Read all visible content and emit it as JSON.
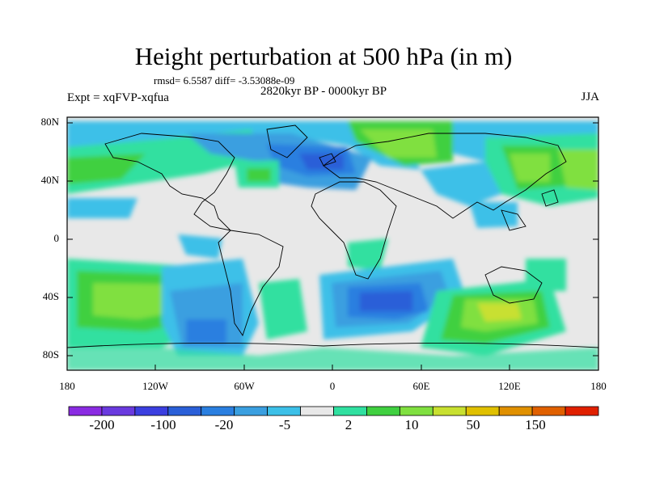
{
  "title": "Height perturbation at 500 hPa (in m)",
  "stats": "rmsd= 6.5587 diff= -3.53088e-09",
  "period": "2820kyr BP - 0000kyr BP",
  "expt": "Expt = xqFVP-xqfua",
  "season": "JJA",
  "lat_labels": [
    "80N",
    "40N",
    "0",
    "40S",
    "80S"
  ],
  "lon_labels": [
    "180",
    "120W",
    "60W",
    "0",
    "60E",
    "120E",
    "180"
  ],
  "colorbar": {
    "colors": [
      "#8a2be2",
      "#6a3adf",
      "#3b3fe0",
      "#2a5fd8",
      "#2a7fe0",
      "#3a9fe0",
      "#3cc0e8",
      "#e8e8e8",
      "#30e0a0",
      "#40d040",
      "#80e040",
      "#c8e030",
      "#e0c000",
      "#e09000",
      "#e06000",
      "#e02000"
    ],
    "labels": [
      "-200",
      "-100",
      "-20",
      "-5",
      "2",
      "10",
      "50",
      "150"
    ]
  }
}
